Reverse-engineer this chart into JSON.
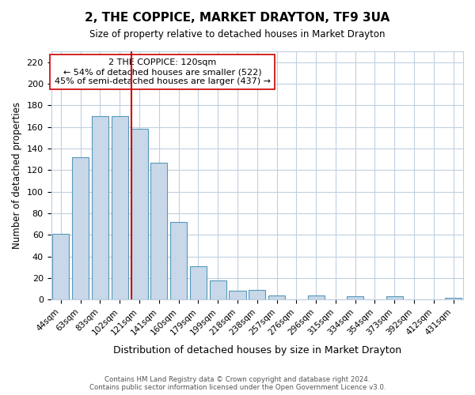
{
  "title": "2, THE COPPICE, MARKET DRAYTON, TF9 3UA",
  "subtitle": "Size of property relative to detached houses in Market Drayton",
  "xlabel": "Distribution of detached houses by size in Market Drayton",
  "ylabel": "Number of detached properties",
  "bar_labels": [
    "44sqm",
    "63sqm",
    "83sqm",
    "102sqm",
    "121sqm",
    "141sqm",
    "160sqm",
    "179sqm",
    "199sqm",
    "218sqm",
    "238sqm",
    "257sqm",
    "276sqm",
    "296sqm",
    "315sqm",
    "334sqm",
    "354sqm",
    "373sqm",
    "392sqm",
    "412sqm",
    "431sqm"
  ],
  "bar_values": [
    61,
    132,
    170,
    170,
    158,
    127,
    72,
    31,
    18,
    8,
    9,
    4,
    0,
    4,
    0,
    3,
    0,
    3,
    0,
    0,
    2
  ],
  "bar_color": "#c8d8e8",
  "bar_edge_color": "#5599bb",
  "ylim": [
    0,
    230
  ],
  "yticks": [
    0,
    20,
    40,
    60,
    80,
    100,
    120,
    140,
    160,
    180,
    200,
    220
  ],
  "vline_x_index": 4,
  "annotation_title": "2 THE COPPICE: 120sqm",
  "annotation_line1": "← 54% of detached houses are smaller (522)",
  "annotation_line2": "45% of semi-detached houses are larger (437) →",
  "vline_color": "#cc0000",
  "footer_line1": "Contains HM Land Registry data © Crown copyright and database right 2024.",
  "footer_line2": "Contains public sector information licensed under the Open Government Licence v3.0.",
  "background_color": "#ffffff",
  "grid_color": "#c0d0e0"
}
